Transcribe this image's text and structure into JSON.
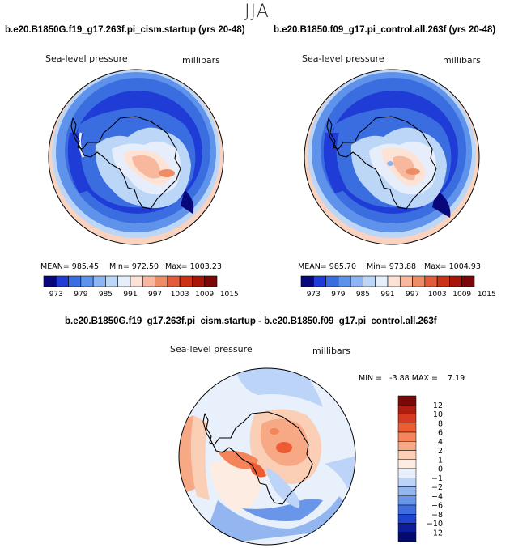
{
  "season": "JJA",
  "panels": [
    {
      "title": "b.e20.B1850G.f19_g17.263f.pi_cism.startup (yrs 20-48)",
      "variable": "Sea-level pressure",
      "units": "millibars",
      "stats": {
        "mean": "MEAN= 985.45",
        "min": "Min= 972.50",
        "max": "Max= 1003.23"
      }
    },
    {
      "title": "b.e20.B1850.f09_g17.pi_control.all.263f (yrs 20-48)",
      "variable": "Sea-level pressure",
      "units": "millibars",
      "stats": {
        "mean": "MEAN= 985.70",
        "min": "Min= 973.88",
        "max": "Max= 1004.93"
      }
    }
  ],
  "diff_panel": {
    "title": "b.e20.B1850G.f19_g17.263f.pi_cism.startup - b.e20.B1850.f09_g17.pi_control.all.263f",
    "variable": "Sea-level pressure",
    "units": "millibars",
    "minmax": "MIN =   -3.88 MAX =    7.19"
  },
  "colorbar_abs": {
    "colors": [
      "#08087a",
      "#1f3dd6",
      "#3a6ee0",
      "#5f92ea",
      "#8db5f3",
      "#bcd6f8",
      "#e6eefb",
      "#fde3d5",
      "#f7b89d",
      "#ef8c68",
      "#e35b3c",
      "#cc3219",
      "#a8160b",
      "#7a0808"
    ],
    "labels": [
      "973",
      "979",
      "985",
      "991",
      "997",
      "1003",
      "1009",
      "1015"
    ]
  },
  "colorbar_diff": {
    "colors": [
      "#7a0808",
      "#b01c0e",
      "#d63a1f",
      "#ee5c34",
      "#f5845a",
      "#f7a985",
      "#fbcfb6",
      "#fdece2",
      "#e8f0fb",
      "#bcd4f7",
      "#93b6f0",
      "#6a96ea",
      "#3f6ee0",
      "#1f45d0",
      "#0c1e9a",
      "#050a6e"
    ],
    "labels": [
      "12",
      "10",
      "8",
      "6",
      "4",
      "2",
      "1",
      "0",
      "-1",
      "-2",
      "-4",
      "-6",
      "-8",
      "-10",
      "-12"
    ]
  }
}
